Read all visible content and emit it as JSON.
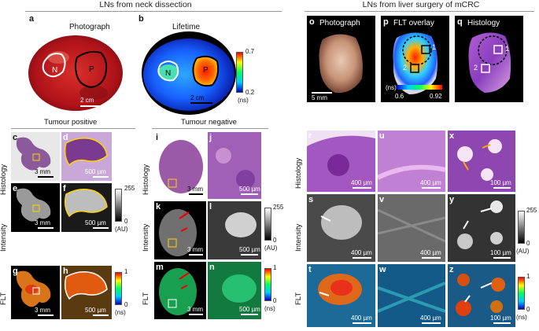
{
  "headers": {
    "neck": "LNs from neck dissection",
    "liver": "LNs from liver surgery of mCRC"
  },
  "titles": {
    "photograph_a": "Photograph",
    "lifetime_b": "Lifetime",
    "photograph_o": "Photograph",
    "flt_overlay_p": "FLT overlay",
    "histology_q": "Histology",
    "tumour_positive": "Tumour positive",
    "tumour_negative": "Tumour negative"
  },
  "panel_letters": [
    "a",
    "b",
    "c",
    "d",
    "e",
    "f",
    "g",
    "h",
    "i",
    "j",
    "k",
    "l",
    "m",
    "n",
    "o",
    "p",
    "q",
    "r",
    "u",
    "x",
    "s",
    "v",
    "y",
    "t",
    "w",
    "z"
  ],
  "row_labels": {
    "histology": "Histology",
    "intensity": "Intensity",
    "flt": "FLT"
  },
  "scalebars": {
    "a": "2 cm",
    "b": "2 cm",
    "o": "5 mm",
    "c": "3 mm",
    "d": "500 µm",
    "e": "3 mm",
    "f": "500 µm",
    "g": "3 mm",
    "h": "500 µm",
    "i": "3 mm",
    "j": "500 µm",
    "k": "3 mm",
    "l": "500 µm",
    "m": "3 mm",
    "n": "500 µm",
    "r": "400 µm",
    "u": "400 µm",
    "x": "100 µm",
    "s": "400 µm",
    "v": "400 µm",
    "y": "100 µm",
    "t": "400 µm",
    "w": "400 µm",
    "z": "100 µm"
  },
  "region_labels": {
    "normal": "N",
    "primary": "P",
    "roi1": "1",
    "roi2": "2"
  },
  "colorbars": {
    "lifetime": {
      "max": "0.7",
      "min": "0.2",
      "unit": "(ns)"
    },
    "flt_overlay": {
      "unit": "(ns)",
      "min": "0.6",
      "max": "0.92"
    },
    "intensity": {
      "max": "255",
      "min": "0",
      "unit": "(AU)"
    },
    "flt": {
      "max": "1",
      "min": "0",
      "unit": "(ns)"
    }
  }
}
